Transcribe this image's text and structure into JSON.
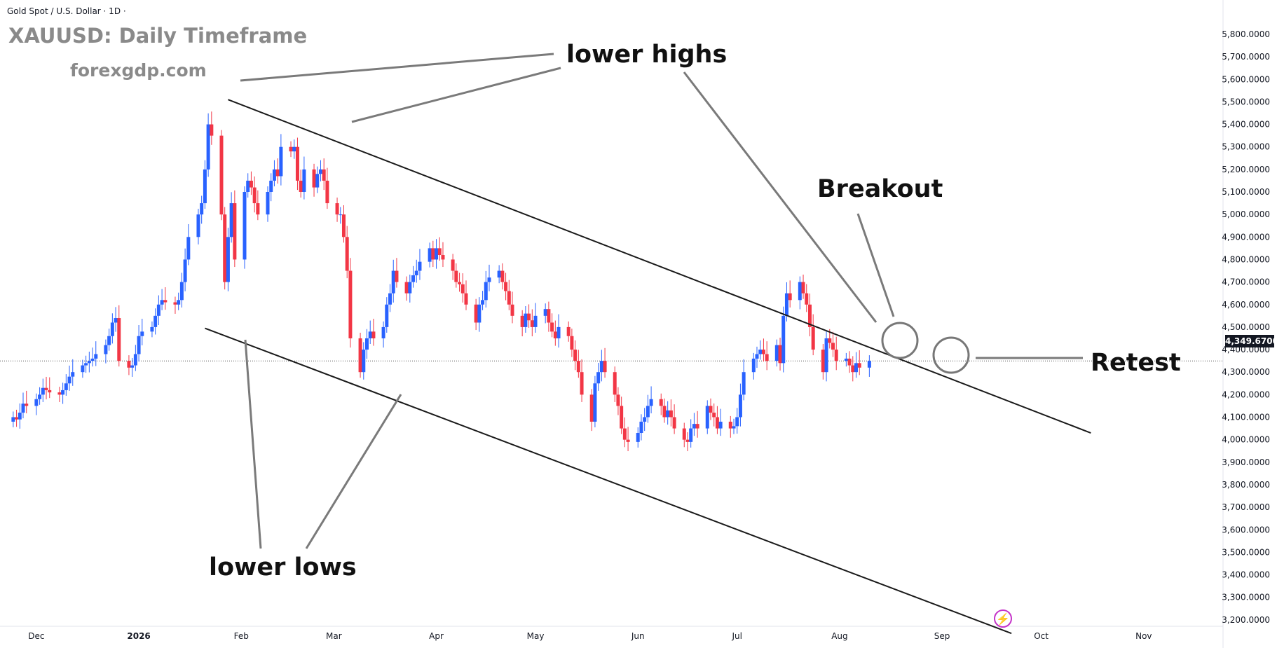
{
  "header": {
    "instrument": "Gold Spot / U.S. Dollar · 1D ·",
    "title": "XAUUSD: Daily Timeframe",
    "watermark": "forexgdp.com"
  },
  "annotations": {
    "lower_highs": "lower highs",
    "lower_lows": "lower lows",
    "breakout": "Breakout",
    "retest": "Retest"
  },
  "last_price_label": "4,349.6700",
  "colors": {
    "up": "#2962ff",
    "down": "#f23645",
    "channel": "#1a1a1a",
    "pointer": "#7a7a7a"
  },
  "chart_data": {
    "type": "candlestick",
    "symbol": "XAUUSD",
    "timeframe": "1D",
    "ylim": [
      3100,
      5900
    ],
    "y_ticks": [
      3200,
      3300,
      3400,
      3500,
      3600,
      3700,
      3800,
      3900,
      4000,
      4100,
      4200,
      4300,
      4400,
      4500,
      4600,
      4700,
      4800,
      4900,
      5000,
      5100,
      5200,
      5300,
      5400,
      5500,
      5600,
      5700,
      5800
    ],
    "y_tick_labels": [
      "3,200.0000",
      "3,300.0000",
      "3,400.0000",
      "3,500.0000",
      "3,600.0000",
      "3,700.0000",
      "3,800.0000",
      "3,900.0000",
      "4,000.0000",
      "4,100.0000",
      "4,200.0000",
      "4,300.0000",
      "4,400.0000",
      "4,500.0000",
      "4,600.0000",
      "4,700.0000",
      "4,800.0000",
      "4,900.0000",
      "5,000.0000",
      "5,100.0000",
      "5,200.0000",
      "5,300.0000",
      "5,400.0000",
      "5,500.0000",
      "5,600.0000",
      "5,700.0000",
      "5,800.0000"
    ],
    "x_ticks": [
      {
        "label": "Dec",
        "date": "2025-12-01"
      },
      {
        "label": "2026",
        "date": "2026-01-01"
      },
      {
        "label": "Feb",
        "date": "2026-02-01"
      },
      {
        "label": "Mar",
        "date": "2026-03-01"
      },
      {
        "label": "Apr",
        "date": "2026-04-01"
      },
      {
        "label": "May",
        "date": "2026-05-01"
      },
      {
        "label": "Jun",
        "date": "2026-06-01"
      },
      {
        "label": "Jul",
        "date": "2026-07-01"
      },
      {
        "label": "Aug",
        "date": "2026-08-01"
      },
      {
        "label": "Sep",
        "date": "2026-09-01"
      },
      {
        "label": "Oct",
        "date": "2026-10-01"
      },
      {
        "label": "Nov",
        "date": "2026-11-01"
      }
    ],
    "xlim": [
      "2025-11-20",
      "2026-11-25"
    ],
    "last_price": 4349.67,
    "channel_lines": [
      {
        "name": "upper",
        "start": [
          "2026-01-28",
          5510
        ],
        "end": [
          "2026-10-16",
          4030
        ]
      },
      {
        "name": "lower",
        "start": [
          "2026-01-21",
          4495
        ],
        "end": [
          "2026-09-22",
          3140
        ]
      }
    ],
    "closes": [
      4100,
      4090,
      4120,
      4160,
      4150,
      4180,
      4200,
      4230,
      4220,
      4210,
      4200,
      4220,
      4250,
      4280,
      4300,
      4330,
      4340,
      4350,
      4360,
      4380,
      4420,
      4460,
      4520,
      4540,
      4350,
      4320,
      4330,
      4380,
      4460,
      4480,
      4500,
      4550,
      4600,
      4620,
      4610,
      4600,
      4620,
      4700,
      4800,
      4900,
      5000,
      5050,
      5200,
      5400,
      5350,
      5000,
      4700,
      4900,
      5050,
      4800,
      5100,
      5150,
      5120,
      5050,
      5000,
      5100,
      5150,
      5200,
      5170,
      5300,
      5280,
      5300,
      5150,
      5100,
      5200,
      5120,
      5180,
      5200,
      5150,
      5050,
      5000,
      5000,
      4900,
      4750,
      4450,
      4300,
      4400,
      4450,
      4480,
      4450,
      4500,
      4600,
      4650,
      4750,
      4700,
      4650,
      4700,
      4730,
      4750,
      4790,
      4850,
      4800,
      4850,
      4820,
      4800,
      4750,
      4700,
      4690,
      4650,
      4600,
      4520,
      4600,
      4620,
      4700,
      4720,
      4750,
      4700,
      4660,
      4600,
      4550,
      4500,
      4560,
      4530,
      4500,
      4550,
      4580,
      4520,
      4480,
      4450,
      4500,
      4460,
      4400,
      4350,
      4300,
      4200,
      4080,
      4250,
      4300,
      4350,
      4300,
      4200,
      4150,
      4050,
      4000,
      3990,
      4030,
      4080,
      4100,
      4150,
      4180,
      4150,
      4100,
      4130,
      4100,
      4050,
      4000,
      3990,
      4050,
      4070,
      4050,
      4150,
      4120,
      4100,
      4050,
      4080,
      4050,
      4060,
      4100,
      4200,
      4300,
      4360,
      4380,
      4400,
      4380,
      4350,
      4420,
      4340,
      4550,
      4650,
      4620,
      4700,
      4650,
      4600,
      4500,
      4400,
      4300,
      4450,
      4430,
      4400,
      4350,
      4360,
      4330,
      4300,
      4340,
      4320,
      4350
    ]
  }
}
